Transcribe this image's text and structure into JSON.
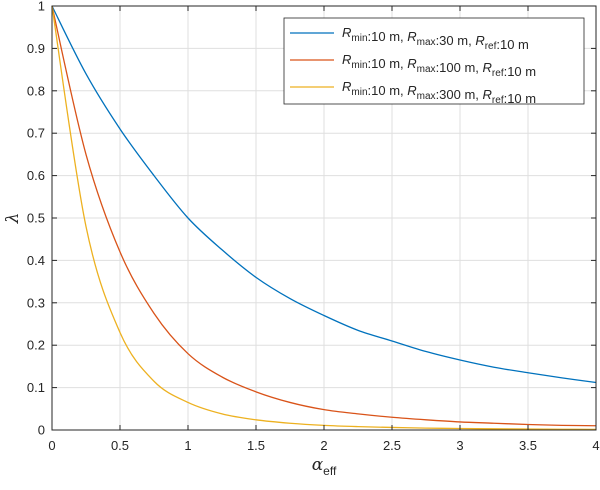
{
  "chart_data": {
    "type": "line",
    "title": "",
    "xlabel": "α",
    "xlabel_subscript": "eff",
    "ylabel": "λ",
    "xlim": [
      0,
      4
    ],
    "ylim": [
      0,
      1
    ],
    "xticks": [
      0,
      0.5,
      1,
      1.5,
      2,
      2.5,
      3,
      3.5,
      4
    ],
    "xtick_labels": [
      "0",
      "0.5",
      "1",
      "1.5",
      "2",
      "2.5",
      "3",
      "3.5",
      "4"
    ],
    "yticks": [
      0,
      0.1,
      0.2,
      0.3,
      0.4,
      0.5,
      0.6,
      0.7,
      0.8,
      0.9,
      1
    ],
    "ytick_labels": [
      "0",
      "0.1",
      "0.2",
      "0.3",
      "0.4",
      "0.5",
      "0.6",
      "0.7",
      "0.8",
      "0.9",
      "1"
    ],
    "grid": true,
    "legend_position": "top-right",
    "x": [
      0,
      0.25,
      0.5,
      0.75,
      1,
      1.25,
      1.5,
      1.75,
      2,
      2.25,
      2.5,
      2.75,
      3,
      3.25,
      3.5,
      3.75,
      4
    ],
    "series": [
      {
        "name": "R_min:10 m, R_max:30 m, R_ref:10 m",
        "legend_parts": [
          {
            "t": "R",
            "s": "min"
          },
          {
            "t": ":10 m, "
          },
          {
            "t": "R",
            "s": "max"
          },
          {
            "t": ":30 m, "
          },
          {
            "t": "R",
            "s": "ref"
          },
          {
            "t": ":10 m"
          }
        ],
        "color": "#0072BD",
        "values": [
          1.0,
          0.84,
          0.71,
          0.6,
          0.5,
          0.425,
          0.36,
          0.31,
          0.27,
          0.235,
          0.21,
          0.185,
          0.165,
          0.148,
          0.135,
          0.123,
          0.112
        ]
      },
      {
        "name": "R_min:10 m, R_max:100 m, R_ref:10 m",
        "legend_parts": [
          {
            "t": "R",
            "s": "min"
          },
          {
            "t": ":10 m, "
          },
          {
            "t": "R",
            "s": "max"
          },
          {
            "t": ":100 m, "
          },
          {
            "t": "R",
            "s": "ref"
          },
          {
            "t": ":10 m"
          }
        ],
        "color": "#D95319",
        "values": [
          1.0,
          0.65,
          0.42,
          0.275,
          0.18,
          0.125,
          0.09,
          0.065,
          0.048,
          0.038,
          0.03,
          0.024,
          0.019,
          0.016,
          0.013,
          0.011,
          0.01
        ]
      },
      {
        "name": "R_min:10 m, R_max:300 m, R_ref:10 m",
        "legend_parts": [
          {
            "t": "R",
            "s": "min"
          },
          {
            "t": ":10 m, "
          },
          {
            "t": "R",
            "s": "max"
          },
          {
            "t": ":300 m, "
          },
          {
            "t": "R",
            "s": "ref"
          },
          {
            "t": ":10 m"
          }
        ],
        "color": "#EDB120",
        "values": [
          1.0,
          0.48,
          0.23,
          0.115,
          0.065,
          0.038,
          0.024,
          0.016,
          0.011,
          0.008,
          0.006,
          0.0045,
          0.0035,
          0.0028,
          0.0022,
          0.0018,
          0.0015
        ]
      }
    ]
  }
}
